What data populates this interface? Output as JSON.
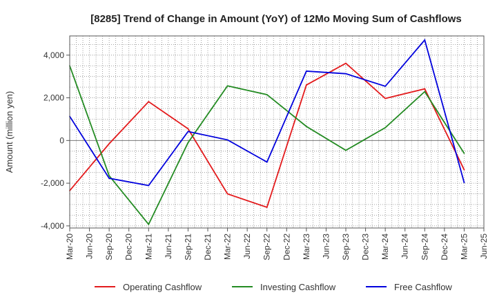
{
  "chart_data": {
    "type": "line",
    "title": "[8285]  Trend of Change in Amount (YoY) of 12Mo Moving Sum of Cashflows",
    "xlabel": "",
    "ylabel": "Amount (million yen)",
    "ylim": [
      -4100,
      4900
    ],
    "yticks": [
      -4000,
      -2000,
      0,
      2000,
      4000
    ],
    "ytick_labels": [
      "-4,000",
      "-2,000",
      "0",
      "2,000",
      "4,000"
    ],
    "categories": [
      "Mar-20",
      "Jun-20",
      "Sep-20",
      "Dec-20",
      "Mar-21",
      "Jun-21",
      "Sep-21",
      "Dec-21",
      "Mar-22",
      "Jun-22",
      "Sep-22",
      "Dec-22",
      "Mar-23",
      "Jun-23",
      "Sep-23",
      "Dec-23",
      "Mar-24",
      "Jun-24",
      "Sep-24",
      "Dec-24",
      "Mar-25",
      "Jun-25"
    ],
    "grid": true,
    "legend_position": "bottom",
    "series": [
      {
        "name": "Operating Cashflow",
        "color": "#e31a1c",
        "points": [
          {
            "x": "Mar-20",
            "y": -2350
          },
          {
            "x": "Sep-20",
            "y": -150
          },
          {
            "x": "Mar-21",
            "y": 1820
          },
          {
            "x": "Sep-21",
            "y": 550
          },
          {
            "x": "Mar-22",
            "y": -2500
          },
          {
            "x": "Sep-22",
            "y": -3130
          },
          {
            "x": "Mar-23",
            "y": 2600
          },
          {
            "x": "Sep-23",
            "y": 3620
          },
          {
            "x": "Mar-24",
            "y": 1970
          },
          {
            "x": "Sep-24",
            "y": 2420
          },
          {
            "x": "Mar-25",
            "y": -1370
          }
        ]
      },
      {
        "name": "Investing Cashflow",
        "color": "#238b22",
        "points": [
          {
            "x": "Mar-20",
            "y": 3500
          },
          {
            "x": "Sep-20",
            "y": -1650
          },
          {
            "x": "Mar-21",
            "y": -3930
          },
          {
            "x": "Sep-21",
            "y": -100
          },
          {
            "x": "Mar-22",
            "y": 2560
          },
          {
            "x": "Sep-22",
            "y": 2150
          },
          {
            "x": "Mar-23",
            "y": 660
          },
          {
            "x": "Sep-23",
            "y": -460
          },
          {
            "x": "Mar-24",
            "y": 600
          },
          {
            "x": "Sep-24",
            "y": 2290
          },
          {
            "x": "Mar-25",
            "y": -600
          }
        ]
      },
      {
        "name": "Free Cashflow",
        "color": "#0000dd",
        "points": [
          {
            "x": "Mar-20",
            "y": 1130
          },
          {
            "x": "Sep-20",
            "y": -1770
          },
          {
            "x": "Mar-21",
            "y": -2110
          },
          {
            "x": "Sep-21",
            "y": 420
          },
          {
            "x": "Mar-22",
            "y": 30
          },
          {
            "x": "Sep-22",
            "y": -1010
          },
          {
            "x": "Mar-23",
            "y": 3250
          },
          {
            "x": "Sep-23",
            "y": 3130
          },
          {
            "x": "Mar-24",
            "y": 2540
          },
          {
            "x": "Sep-24",
            "y": 4710
          },
          {
            "x": "Mar-25",
            "y": -1970
          }
        ]
      }
    ]
  }
}
